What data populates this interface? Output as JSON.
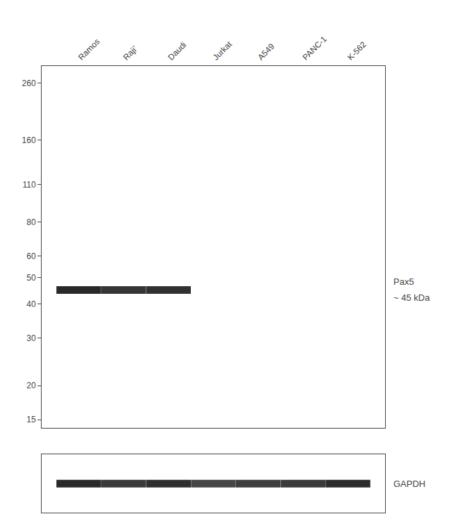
{
  "chart_data": [
    {
      "type": "blot",
      "categories": [
        "Ramos",
        "Raji’",
        "Daudi",
        "Jurkat",
        "A549",
        "PANC-1",
        "K-562"
      ],
      "series": [
        {
          "values": [
            45,
            45,
            45,
            null,
            null,
            null,
            null
          ],
          "intensity": [
            0.88,
            0.82,
            0.84,
            null,
            null,
            null,
            null
          ]
        }
      ],
      "annotations": [
        "Pax5",
        "~ 45 kDa"
      ],
      "log": "y",
      "ylim": [
        14,
        300
      ],
      "yticks": [
        260,
        160,
        110,
        80,
        60,
        50,
        40,
        30,
        20,
        15
      ],
      "grid": false
    },
    {
      "type": "blot",
      "categories": [
        "Ramos",
        "Raji’",
        "Daudi",
        "Jurkat",
        "A549",
        "PANC-1",
        "K-562"
      ],
      "series": [
        {
          "intensity": [
            0.88,
            0.8,
            0.85,
            0.74,
            0.78,
            0.8,
            0.87
          ]
        }
      ],
      "annotations": [
        "GAPDH"
      ],
      "tick_labels": false,
      "grid": false
    }
  ]
}
